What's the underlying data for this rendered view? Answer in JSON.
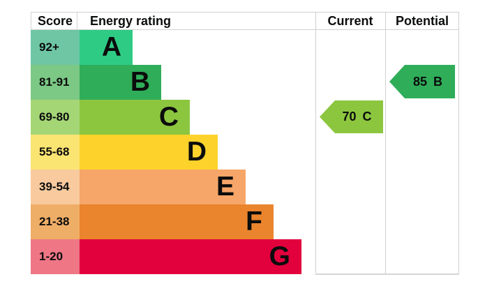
{
  "header": {
    "score": "Score",
    "energy_rating": "Energy rating",
    "current": "Current",
    "potential": "Potential"
  },
  "bands": [
    {
      "score": "92+",
      "letter": "A",
      "bar_color": "#2ecb85",
      "score_bg": "#6ec6a5"
    },
    {
      "score": "81-91",
      "letter": "B",
      "bar_color": "#2fad59",
      "score_bg": "#7cc885"
    },
    {
      "score": "69-80",
      "letter": "C",
      "bar_color": "#8cc63f",
      "score_bg": "#a5d676"
    },
    {
      "score": "55-68",
      "letter": "D",
      "bar_color": "#fdd32b",
      "score_bg": "#fae472"
    },
    {
      "score": "39-54",
      "letter": "E",
      "bar_color": "#f6a668",
      "score_bg": "#f8ca9e"
    },
    {
      "score": "21-38",
      "letter": "F",
      "bar_color": "#ea842d",
      "score_bg": "#efae67"
    },
    {
      "score": "1-20",
      "letter": "G",
      "bar_color": "#e2003d",
      "score_bg": "#ee7685"
    }
  ],
  "current": {
    "value": "70",
    "letter": "C",
    "color": "#8cc63f"
  },
  "potential": {
    "value": "85",
    "letter": "B",
    "color": "#2fad59"
  },
  "border_color": "#d1d1d1",
  "chart_data": {
    "type": "bar",
    "orientation": "horizontal",
    "title": "Energy rating",
    "columns": [
      "Score",
      "Energy rating",
      "Current",
      "Potential"
    ],
    "categories": [
      "A",
      "B",
      "C",
      "D",
      "E",
      "F",
      "G"
    ],
    "score_ranges": [
      "92+",
      "81-91",
      "69-80",
      "55-68",
      "39-54",
      "21-38",
      "1-20"
    ],
    "relative_bar_lengths": [
      1,
      2,
      3,
      4,
      5,
      6,
      7
    ],
    "band_colors": [
      "#2ecb85",
      "#2fad59",
      "#8cc63f",
      "#fdd32b",
      "#f6a668",
      "#ea842d",
      "#e2003d"
    ],
    "markers": [
      {
        "label": "Current",
        "value": 70,
        "band": "C",
        "color": "#8cc63f"
      },
      {
        "label": "Potential",
        "value": 85,
        "band": "B",
        "color": "#2fad59"
      }
    ],
    "legend_position": "none",
    "grid": false
  }
}
